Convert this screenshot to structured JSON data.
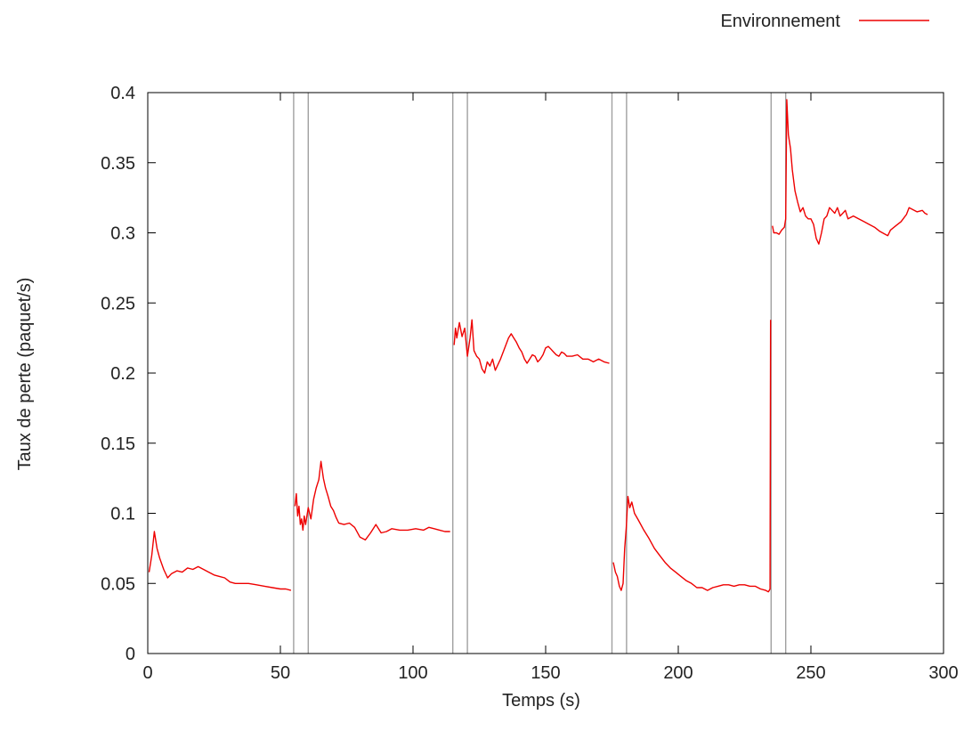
{
  "chart_data": {
    "type": "line",
    "title": "",
    "xlabel": "Temps (s)",
    "ylabel": "Taux de perte (paquet/s)",
    "xlim": [
      0,
      300
    ],
    "ylim": [
      0,
      0.4
    ],
    "xticks": [
      0,
      50,
      100,
      150,
      200,
      250,
      300
    ],
    "yticks": [
      0,
      0.05,
      0.1,
      0.15,
      0.2,
      0.25,
      0.3,
      0.35,
      0.4
    ],
    "xtick_labels": [
      "0",
      "50",
      "100",
      "150",
      "200",
      "250",
      "300"
    ],
    "ytick_labels": [
      "0",
      "0.05",
      "0.1",
      "0.15",
      "0.2",
      "0.25",
      "0.3",
      "0.35",
      "0.4"
    ],
    "grid": false,
    "legend_position": "top-right",
    "vertical_lines": [
      55,
      60.5,
      115,
      120.5,
      175,
      180.5,
      235,
      240.5
    ],
    "series": [
      {
        "name": "Environnement",
        "color": "#ee0000",
        "segments": [
          [
            [
              0.5,
              0.058
            ],
            [
              1.5,
              0.07
            ],
            [
              2.5,
              0.087
            ],
            [
              3.5,
              0.075
            ],
            [
              4.5,
              0.068
            ],
            [
              6,
              0.06
            ],
            [
              7.5,
              0.054
            ],
            [
              9,
              0.057
            ],
            [
              11,
              0.059
            ],
            [
              13,
              0.058
            ],
            [
              15,
              0.061
            ],
            [
              17,
              0.06
            ],
            [
              19,
              0.062
            ],
            [
              21,
              0.06
            ],
            [
              23,
              0.058
            ],
            [
              25,
              0.056
            ],
            [
              27,
              0.055
            ],
            [
              29,
              0.054
            ],
            [
              31,
              0.051
            ],
            [
              33,
              0.05
            ],
            [
              35,
              0.05
            ],
            [
              38,
              0.05
            ],
            [
              41,
              0.049
            ],
            [
              44,
              0.048
            ],
            [
              47,
              0.047
            ],
            [
              50,
              0.046
            ],
            [
              52,
              0.046
            ],
            [
              54,
              0.045
            ]
          ],
          [
            [
              55.5,
              0.105
            ],
            [
              56,
              0.114
            ],
            [
              56.5,
              0.098
            ],
            [
              57,
              0.105
            ],
            [
              57.5,
              0.092
            ],
            [
              58,
              0.096
            ],
            [
              58.5,
              0.088
            ],
            [
              59,
              0.098
            ],
            [
              59.5,
              0.092
            ],
            [
              60,
              0.098
            ],
            [
              60.5,
              0.104
            ],
            [
              61.5,
              0.096
            ],
            [
              62.5,
              0.11
            ],
            [
              63.5,
              0.118
            ],
            [
              64.5,
              0.124
            ],
            [
              65.3,
              0.137
            ],
            [
              66.2,
              0.125
            ],
            [
              67,
              0.118
            ],
            [
              68,
              0.112
            ],
            [
              69,
              0.105
            ],
            [
              70,
              0.102
            ],
            [
              71,
              0.097
            ],
            [
              72,
              0.093
            ],
            [
              74,
              0.092
            ],
            [
              76,
              0.093
            ],
            [
              78,
              0.09
            ],
            [
              80,
              0.083
            ],
            [
              82,
              0.081
            ],
            [
              84,
              0.086
            ],
            [
              86,
              0.092
            ],
            [
              88,
              0.086
            ],
            [
              90,
              0.087
            ],
            [
              92,
              0.089
            ],
            [
              95,
              0.088
            ],
            [
              98,
              0.088
            ],
            [
              101,
              0.089
            ],
            [
              104,
              0.088
            ],
            [
              106,
              0.09
            ],
            [
              108,
              0.089
            ],
            [
              110,
              0.088
            ],
            [
              112,
              0.087
            ],
            [
              114,
              0.087
            ]
          ],
          [
            [
              115.5,
              0.22
            ],
            [
              116,
              0.232
            ],
            [
              116.5,
              0.225
            ],
            [
              117.5,
              0.236
            ],
            [
              118.5,
              0.226
            ],
            [
              119.5,
              0.232
            ],
            [
              120.5,
              0.212
            ],
            [
              121.5,
              0.225
            ],
            [
              122.2,
              0.238
            ],
            [
              123,
              0.216
            ],
            [
              124,
              0.212
            ],
            [
              125,
              0.21
            ],
            [
              126,
              0.203
            ],
            [
              127,
              0.2
            ],
            [
              128,
              0.208
            ],
            [
              129,
              0.205
            ],
            [
              130,
              0.21
            ],
            [
              131,
              0.202
            ],
            [
              132,
              0.206
            ],
            [
              133,
              0.21
            ],
            [
              134,
              0.215
            ],
            [
              135,
              0.22
            ],
            [
              136,
              0.225
            ],
            [
              137,
              0.228
            ],
            [
              138,
              0.225
            ],
            [
              139,
              0.222
            ],
            [
              140,
              0.218
            ],
            [
              141,
              0.215
            ],
            [
              142,
              0.21
            ],
            [
              143,
              0.207
            ],
            [
              144,
              0.21
            ],
            [
              145,
              0.213
            ],
            [
              146,
              0.212
            ],
            [
              147,
              0.208
            ],
            [
              148,
              0.21
            ],
            [
              149,
              0.213
            ],
            [
              150,
              0.218
            ],
            [
              151,
              0.219
            ],
            [
              152,
              0.217
            ],
            [
              153,
              0.215
            ],
            [
              154,
              0.213
            ],
            [
              155,
              0.212
            ],
            [
              156,
              0.215
            ],
            [
              157,
              0.214
            ],
            [
              158,
              0.212
            ],
            [
              160,
              0.212
            ],
            [
              162,
              0.213
            ],
            [
              164,
              0.21
            ],
            [
              166,
              0.21
            ],
            [
              168,
              0.208
            ],
            [
              170,
              0.21
            ],
            [
              172,
              0.208
            ],
            [
              174,
              0.207
            ]
          ],
          [
            [
              175.5,
              0.065
            ],
            [
              176.3,
              0.058
            ],
            [
              177,
              0.055
            ],
            [
              177.8,
              0.048
            ],
            [
              178.5,
              0.045
            ],
            [
              179.2,
              0.05
            ],
            [
              179.8,
              0.075
            ],
            [
              180.4,
              0.09
            ],
            [
              181,
              0.112
            ],
            [
              181.7,
              0.104
            ],
            [
              182.5,
              0.108
            ],
            [
              183.5,
              0.1
            ],
            [
              185,
              0.095
            ],
            [
              187,
              0.088
            ],
            [
              189,
              0.082
            ],
            [
              191,
              0.075
            ],
            [
              193,
              0.07
            ],
            [
              195,
              0.065
            ],
            [
              197,
              0.061
            ],
            [
              199,
              0.058
            ],
            [
              201,
              0.055
            ],
            [
              203,
              0.052
            ],
            [
              205,
              0.05
            ],
            [
              207,
              0.047
            ],
            [
              209,
              0.047
            ],
            [
              211,
              0.045
            ],
            [
              213,
              0.047
            ],
            [
              215,
              0.048
            ],
            [
              217,
              0.049
            ],
            [
              219,
              0.049
            ],
            [
              221,
              0.048
            ],
            [
              223,
              0.049
            ],
            [
              225,
              0.049
            ],
            [
              227,
              0.048
            ],
            [
              229,
              0.048
            ],
            [
              231,
              0.046
            ],
            [
              233,
              0.045
            ],
            [
              234,
              0.044
            ],
            [
              234.6,
              0.046
            ],
            [
              234.8,
              0.238
            ]
          ],
          [
            [
              235.5,
              0.305
            ],
            [
              236,
              0.3
            ],
            [
              237,
              0.3
            ],
            [
              238,
              0.299
            ],
            [
              239,
              0.302
            ],
            [
              240,
              0.304
            ],
            [
              240.5,
              0.31
            ],
            [
              240.9,
              0.395
            ],
            [
              241.5,
              0.37
            ],
            [
              242.3,
              0.36
            ],
            [
              243,
              0.345
            ],
            [
              244,
              0.33
            ],
            [
              245,
              0.322
            ],
            [
              246,
              0.315
            ],
            [
              247,
              0.318
            ],
            [
              248,
              0.312
            ],
            [
              249,
              0.31
            ],
            [
              250,
              0.31
            ],
            [
              251,
              0.306
            ],
            [
              252,
              0.296
            ],
            [
              253,
              0.292
            ],
            [
              254,
              0.3
            ],
            [
              255,
              0.31
            ],
            [
              256,
              0.312
            ],
            [
              257,
              0.318
            ],
            [
              258,
              0.316
            ],
            [
              259,
              0.314
            ],
            [
              260,
              0.318
            ],
            [
              261,
              0.312
            ],
            [
              262,
              0.314
            ],
            [
              263,
              0.316
            ],
            [
              264,
              0.31
            ],
            [
              266,
              0.312
            ],
            [
              268,
              0.31
            ],
            [
              270,
              0.308
            ],
            [
              272,
              0.306
            ],
            [
              274,
              0.304
            ],
            [
              276,
              0.301
            ],
            [
              278,
              0.299
            ],
            [
              279,
              0.298
            ],
            [
              280,
              0.302
            ],
            [
              282,
              0.305
            ],
            [
              284,
              0.308
            ],
            [
              286,
              0.313
            ],
            [
              287,
              0.318
            ],
            [
              288,
              0.317
            ],
            [
              290,
              0.315
            ],
            [
              292,
              0.316
            ],
            [
              293,
              0.314
            ],
            [
              294,
              0.313
            ]
          ]
        ]
      }
    ]
  },
  "colors": {
    "series": "#ee0000",
    "frame": "#000000",
    "vlines": "#a0a0a0",
    "text": "#222222"
  }
}
